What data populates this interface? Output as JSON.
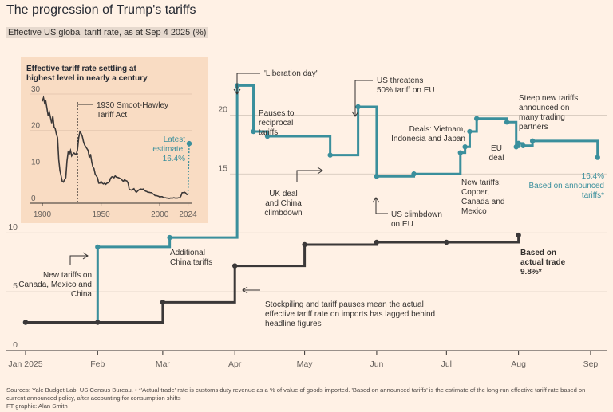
{
  "title": "The progression of Trump's tariffs",
  "subtitle": "Effective US global tariff rate, as at Sep 4 2025 (%)",
  "footer": {
    "line1": "Sources: Yale Budget Lab; US Census Bureau. • *'Actual trade' rate is customs duty revenue as a % of value of goods imported. 'Based on announced tariffs' is the estimate of the long-run effective tariff rate based on",
    "line2": "current announced policy, after accounting for consumption shifts",
    "line3": "FT graphic: Alan Smith"
  },
  "colors": {
    "background": "#fff1e5",
    "announced": "#3a8f9c",
    "actual": "#3b3838",
    "inset_background": "#f9dcc3",
    "grid": "#cfc2b6",
    "annotation": "#33302e"
  },
  "chart_data": [
    {
      "type": "line",
      "x_axis": {
        "range": [
          "2025-01-01",
          "2025-09-12"
        ],
        "ticks": [
          {
            "date": "2025-01-01",
            "label": "Jan 2025"
          },
          {
            "date": "2025-02-01",
            "label": "Feb"
          },
          {
            "date": "2025-03-01",
            "label": "Mar"
          },
          {
            "date": "2025-04-01",
            "label": "Apr"
          },
          {
            "date": "2025-05-01",
            "label": "May"
          },
          {
            "date": "2025-06-01",
            "label": "Jun"
          },
          {
            "date": "2025-07-01",
            "label": "Jul"
          },
          {
            "date": "2025-08-01",
            "label": "Aug"
          },
          {
            "date": "2025-09-01",
            "label": "Sep"
          }
        ]
      },
      "y_axis": {
        "range": [
          0,
          23
        ],
        "ticks": [
          {
            "value": 0,
            "label": "0"
          },
          {
            "value": 5,
            "label": "5"
          },
          {
            "value": 10,
            "label": "10"
          },
          {
            "value": 15,
            "label": "15"
          },
          {
            "value": 20,
            "label": "20"
          }
        ]
      },
      "grid": true,
      "series": [
        {
          "key": "announced",
          "color": "#3a8f9c",
          "steps": [
            {
              "x": "2025-01-01",
              "y": 2.4,
              "dot": true
            },
            {
              "x": "2025-02-01",
              "y": 8.8,
              "dot": true
            },
            {
              "x": "2025-03-04",
              "y": 9.6,
              "dot": true
            },
            {
              "x": "2025-04-02",
              "y": 22.5,
              "dot": true
            },
            {
              "x": "2025-04-09",
              "y": 18.6,
              "dot": true
            },
            {
              "x": "2025-04-15",
              "y": 18.2,
              "dot": true
            },
            {
              "x": "2025-05-12",
              "y": 16.6,
              "dot": true
            },
            {
              "x": "2025-05-24",
              "y": 20.7,
              "dot": true
            },
            {
              "x": "2025-06-01",
              "y": 14.8,
              "dot": true
            },
            {
              "x": "2025-06-17",
              "y": 15.0,
              "dot": true
            },
            {
              "x": "2025-07-07",
              "y": 16.8,
              "dot": true
            },
            {
              "x": "2025-07-09",
              "y": 17.3,
              "dot": true
            },
            {
              "x": "2025-07-11",
              "y": 18.6,
              "dot": true
            },
            {
              "x": "2025-07-14",
              "y": 19.7,
              "dot": true
            },
            {
              "x": "2025-07-27",
              "y": 19.4,
              "dot": true
            },
            {
              "x": "2025-07-31",
              "y": 17.3,
              "dot": true
            },
            {
              "x": "2025-08-01",
              "y": 17.6,
              "dot": true
            },
            {
              "x": "2025-08-03",
              "y": 17.4,
              "dot": true
            },
            {
              "x": "2025-08-07",
              "y": 17.8,
              "dot": true
            },
            {
              "x": "2025-09-04",
              "y": 16.4,
              "dot": true
            }
          ]
        },
        {
          "key": "actual",
          "color": "#3b3838",
          "steps": [
            {
              "x": "2025-01-01",
              "y": 2.4,
              "dot": true
            },
            {
              "x": "2025-02-01",
              "y": 2.4,
              "dot": true
            },
            {
              "x": "2025-03-01",
              "y": 4.1,
              "dot": true
            },
            {
              "x": "2025-04-01",
              "y": 7.2,
              "dot": true
            },
            {
              "x": "2025-05-01",
              "y": 9.0,
              "dot": true
            },
            {
              "x": "2025-06-01",
              "y": 9.2,
              "dot": true
            },
            {
              "x": "2025-07-01",
              "y": 9.2,
              "dot": true
            },
            {
              "x": "2025-08-01",
              "y": 9.8,
              "dot": true
            }
          ]
        }
      ],
      "annotations": [
        {
          "key": "liberation",
          "lines": [
            "'Liberation day'"
          ]
        },
        {
          "key": "pauses",
          "lines": [
            "Pauses to",
            "reciprocal",
            "tariffs"
          ]
        },
        {
          "key": "uk",
          "lines": [
            "UK deal",
            "and China",
            "climbdown"
          ]
        },
        {
          "key": "threatens",
          "lines": [
            "US threatens",
            "50% tariff on EU"
          ]
        },
        {
          "key": "climbdown",
          "lines": [
            "US climbdown",
            "on EU"
          ]
        },
        {
          "key": "deals",
          "lines": [
            "Deals: Vietnam,",
            "Indonesia and Japan"
          ]
        },
        {
          "key": "eu_deal",
          "lines": [
            "EU",
            "deal"
          ]
        },
        {
          "key": "steep",
          "lines": [
            "Steep new tariffs",
            "announced on",
            "many trading",
            "partners"
          ]
        },
        {
          "key": "new_tariffs",
          "lines": [
            "New tariffs:",
            "Copper,",
            "Canada and",
            "Mexico"
          ]
        },
        {
          "key": "canada",
          "lines": [
            "New tariffs on",
            "Canada, Mexico and",
            "China"
          ]
        },
        {
          "key": "china",
          "lines": [
            "Additional",
            "China tariffs"
          ]
        },
        {
          "key": "stockpiling",
          "lines": [
            "Stockpiling and tariff pauses mean the actual",
            "effective tariff rate on imports has lagged behind",
            "headline figures"
          ]
        },
        {
          "key": "latest_announced",
          "lines": [
            "16.4%",
            "Based on announced",
            "tariffs*"
          ]
        },
        {
          "key": "latest_actual",
          "lines": [
            "Based on",
            "actual trade",
            "9.8%*"
          ]
        }
      ]
    },
    {
      "type": "line",
      "title": "Effective tariff rate settling at highest level in nearly a century",
      "x_axis": {
        "range": [
          1900,
          2025
        ],
        "ticks": [
          1900,
          1950,
          2000,
          2024
        ]
      },
      "y_axis": {
        "range": [
          0,
          30
        ],
        "ticks": [
          0,
          10,
          20,
          30
        ]
      },
      "series": [
        {
          "key": "history",
          "color": "#3b3838",
          "points": [
            [
              1900,
              28
            ],
            [
              1901,
              29
            ],
            [
              1902,
              27.5
            ],
            [
              1903,
              28
            ],
            [
              1904,
              26
            ],
            [
              1905,
              24
            ],
            [
              1906,
              25
            ],
            [
              1907,
              23.5
            ],
            [
              1908,
              22
            ],
            [
              1909,
              24
            ],
            [
              1910,
              21
            ],
            [
              1911,
              20.5
            ],
            [
              1912,
              19
            ],
            [
              1913,
              18
            ],
            [
              1914,
              12
            ],
            [
              1915,
              9
            ],
            [
              1916,
              7.5
            ],
            [
              1917,
              6
            ],
            [
              1918,
              5.8
            ],
            [
              1919,
              6.5
            ],
            [
              1920,
              7
            ],
            [
              1921,
              11.5
            ],
            [
              1922,
              14
            ],
            [
              1923,
              13.5
            ],
            [
              1924,
              14.5
            ],
            [
              1925,
              13
            ],
            [
              1926,
              13.5
            ],
            [
              1927,
              13.8
            ],
            [
              1928,
              13.5
            ],
            [
              1929,
              13.5
            ],
            [
              1930,
              14.8
            ],
            [
              1931,
              18
            ],
            [
              1932,
              19.6
            ],
            [
              1933,
              19.2
            ],
            [
              1934,
              18.4
            ],
            [
              1935,
              17
            ],
            [
              1936,
              16
            ],
            [
              1937,
              15.5
            ],
            [
              1938,
              15
            ],
            [
              1939,
              14.5
            ],
            [
              1940,
              12.5
            ],
            [
              1941,
              13.5
            ],
            [
              1942,
              11.5
            ],
            [
              1943,
              10
            ],
            [
              1944,
              9.5
            ],
            [
              1945,
              8
            ],
            [
              1946,
              7.5
            ],
            [
              1947,
              7
            ],
            [
              1948,
              5.5
            ],
            [
              1949,
              5.5
            ],
            [
              1950,
              6
            ],
            [
              1951,
              5.5
            ],
            [
              1952,
              5.3
            ],
            [
              1953,
              5.5
            ],
            [
              1954,
              5.2
            ],
            [
              1955,
              5.5
            ],
            [
              1956,
              5.6
            ],
            [
              1957,
              5.8
            ],
            [
              1958,
              6.8
            ],
            [
              1959,
              7.2
            ],
            [
              1960,
              7.3
            ],
            [
              1961,
              7
            ],
            [
              1962,
              7.5
            ],
            [
              1963,
              7.2
            ],
            [
              1964,
              7.1
            ],
            [
              1965,
              7
            ],
            [
              1966,
              6.8
            ],
            [
              1967,
              6.7
            ],
            [
              1968,
              6.3
            ],
            [
              1969,
              6
            ],
            [
              1970,
              6.5
            ],
            [
              1971,
              6.2
            ],
            [
              1972,
              6.1
            ],
            [
              1973,
              5.5
            ],
            [
              1974,
              3.8
            ],
            [
              1975,
              3.7
            ],
            [
              1976,
              3.6
            ],
            [
              1977,
              3.8
            ],
            [
              1978,
              4
            ],
            [
              1979,
              3.4
            ],
            [
              1980,
              3
            ],
            [
              1981,
              3.3
            ],
            [
              1982,
              3.6
            ],
            [
              1983,
              3.8
            ],
            [
              1984,
              3.9
            ],
            [
              1985,
              3.8
            ],
            [
              1986,
              3.9
            ],
            [
              1987,
              3.5
            ],
            [
              1988,
              3.3
            ],
            [
              1989,
              3.2
            ],
            [
              1990,
              3
            ],
            [
              1991,
              3
            ],
            [
              1992,
              2.9
            ],
            [
              1993,
              2.9
            ],
            [
              1994,
              2.6
            ],
            [
              1995,
              2.4
            ],
            [
              1996,
              2.1
            ],
            [
              1997,
              2.1
            ],
            [
              1998,
              2
            ],
            [
              1999,
              1.9
            ],
            [
              2000,
              1.7
            ],
            [
              2001,
              1.8
            ],
            [
              2002,
              1.8
            ],
            [
              2003,
              1.6
            ],
            [
              2004,
              1.5
            ],
            [
              2005,
              1.5
            ],
            [
              2006,
              1.4
            ],
            [
              2007,
              1.4
            ],
            [
              2008,
              1.3
            ],
            [
              2009,
              1.4
            ],
            [
              2010,
              1.4
            ],
            [
              2011,
              1.4
            ],
            [
              2012,
              1.5
            ],
            [
              2013,
              1.4
            ],
            [
              2014,
              1.4
            ],
            [
              2015,
              1.4
            ],
            [
              2016,
              1.5
            ],
            [
              2017,
              1.5
            ],
            [
              2018,
              2
            ],
            [
              2019,
              2.9
            ],
            [
              2020,
              2.9
            ],
            [
              2021,
              3
            ],
            [
              2022,
              2.8
            ],
            [
              2023,
              2.4
            ],
            [
              2024,
              2.4
            ]
          ]
        }
      ],
      "latest": {
        "from": [
          2024,
          2.4
        ],
        "to": [
          2025,
          16.4
        ]
      },
      "marker_year": 1930,
      "annotations": [
        {
          "key": "smoot",
          "lines": [
            "1930 Smoot-Hawley",
            "Tariff Act"
          ]
        },
        {
          "key": "latest",
          "lines": [
            "Latest",
            "estimate:",
            "16.4%"
          ]
        }
      ]
    }
  ]
}
